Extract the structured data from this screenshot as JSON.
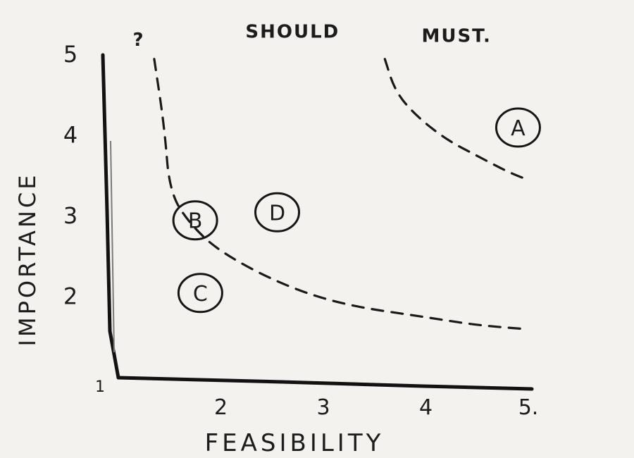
{
  "chart_data": {
    "type": "scatter",
    "title": "",
    "xlabel": "FEASIBILITY",
    "ylabel": "IMPORTANCE",
    "origin_label": "1",
    "x_ticks": [
      "2",
      "3",
      "4",
      "5."
    ],
    "x_tick_values": [
      2,
      3,
      4,
      5
    ],
    "y_ticks": [
      "2",
      "3",
      "4",
      "5"
    ],
    "y_tick_values": [
      2,
      3,
      4,
      5
    ],
    "xlim": [
      1,
      5
    ],
    "ylim": [
      1,
      5
    ],
    "zones": [
      {
        "label": "?",
        "x": 1.2,
        "y": 5.2
      },
      {
        "label": "SHOULD",
        "x": 2.7,
        "y": 5.3
      },
      {
        "label": "MUST.",
        "x": 4.3,
        "y": 5.25
      }
    ],
    "points": [
      {
        "label": "B",
        "x": 1.75,
        "y": 2.95
      },
      {
        "label": "D",
        "x": 2.55,
        "y": 3.05
      },
      {
        "label": "C",
        "x": 1.8,
        "y": 2.05
      },
      {
        "label": "A",
        "x": 4.9,
        "y": 4.1
      }
    ],
    "boundaries": [
      {
        "name": "",
        "points": [
          [
            1.35,
            4.95
          ],
          [
            1.45,
            4.1
          ],
          [
            1.5,
            3.3
          ],
          [
            1.7,
            2.9
          ],
          [
            2.0,
            2.55
          ],
          [
            2.6,
            2.15
          ],
          [
            3.2,
            1.9
          ],
          [
            4.0,
            1.75
          ],
          [
            4.5,
            1.65
          ],
          [
            5.0,
            1.6
          ]
        ]
      },
      {
        "name": "",
        "points": [
          [
            3.6,
            4.95
          ],
          [
            3.7,
            4.55
          ],
          [
            3.9,
            4.25
          ],
          [
            4.2,
            3.95
          ],
          [
            4.5,
            3.75
          ],
          [
            4.8,
            3.55
          ],
          [
            5.0,
            3.45
          ]
        ]
      }
    ]
  }
}
